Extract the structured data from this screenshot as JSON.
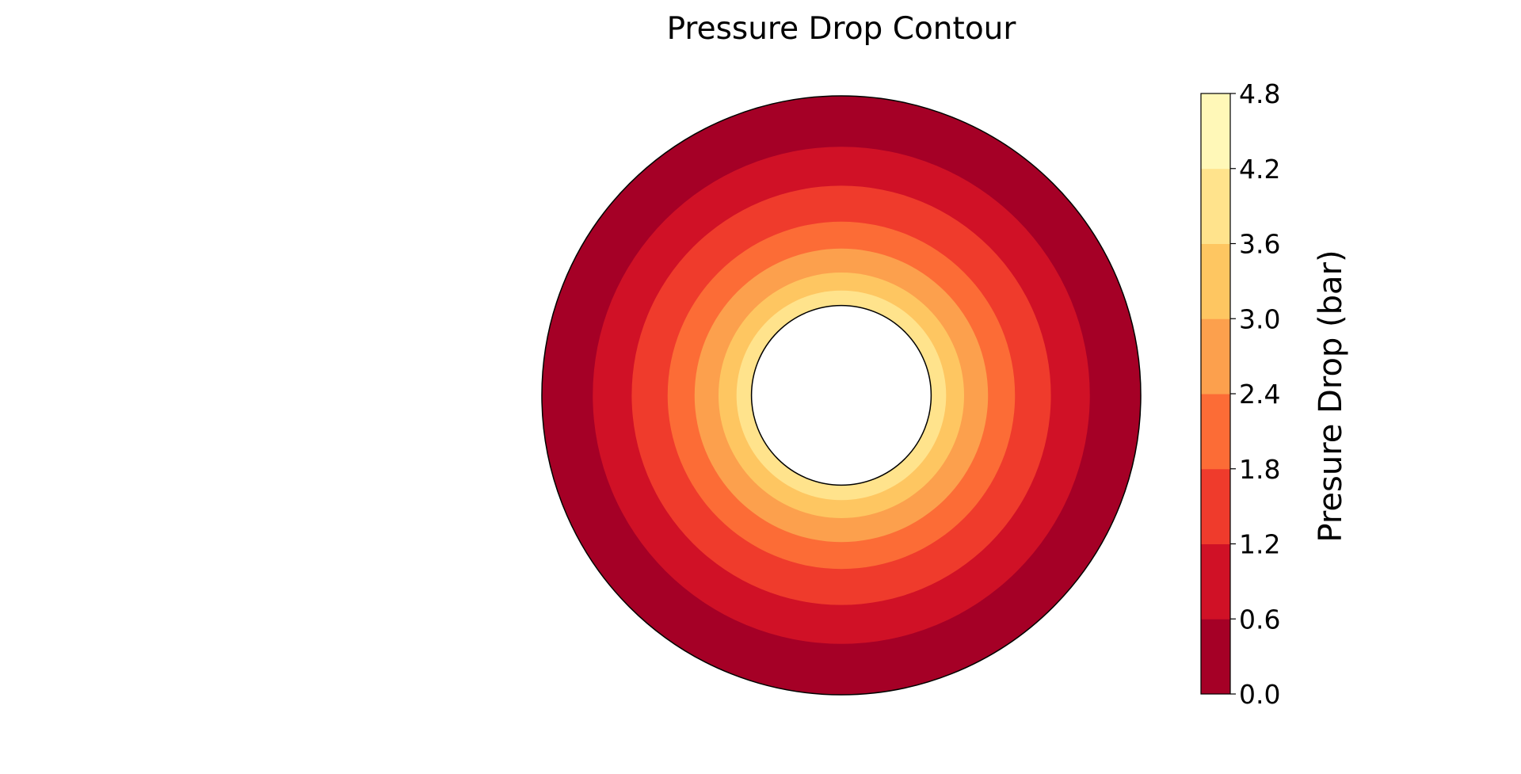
{
  "chart_data": {
    "type": "contour",
    "title": "Pressure Drop Contour",
    "colorbar": {
      "label": "Presure Drop (bar)",
      "levels": [
        0.0,
        0.6,
        1.2,
        1.8,
        2.4,
        3.0,
        3.6,
        4.2,
        4.8
      ],
      "tick_labels": [
        "0.0",
        "0.6",
        "1.2",
        "1.8",
        "2.4",
        "3.0",
        "3.6",
        "4.2",
        "4.8"
      ],
      "colors": [
        "#a50026",
        "#d01126",
        "#ef3b2c",
        "#fc6c36",
        "#fca04d",
        "#fec661",
        "#ffe38c",
        "#fff8b8"
      ],
      "placement": "right"
    },
    "domain": {
      "shape": "annulus",
      "inner_radius": 0.3,
      "outer_radius": 1.0
    },
    "bands": [
      {
        "r_min": 0.3,
        "r_max": 0.35,
        "level": 3.6
      },
      {
        "r_min": 0.35,
        "r_max": 0.41,
        "level": 3.0
      },
      {
        "r_min": 0.41,
        "r_max": 0.49,
        "level": 2.4
      },
      {
        "r_min": 0.49,
        "r_max": 0.58,
        "level": 1.8
      },
      {
        "r_min": 0.58,
        "r_max": 0.7,
        "level": 1.2
      },
      {
        "r_min": 0.7,
        "r_max": 0.83,
        "level": 0.6
      },
      {
        "r_min": 0.83,
        "r_max": 1.0,
        "level": 0.0
      }
    ],
    "axes_visible": false
  }
}
